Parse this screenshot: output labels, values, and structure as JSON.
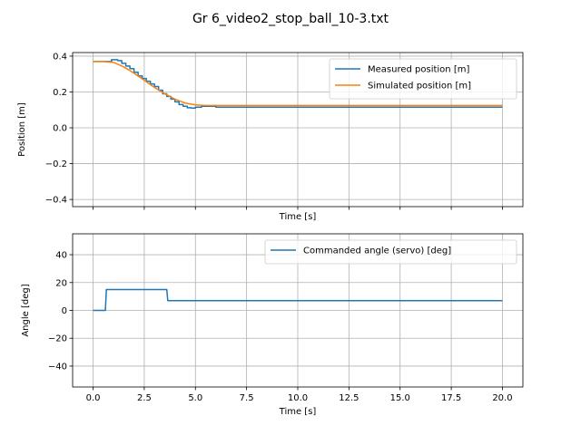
{
  "figure": {
    "title": "Gr 6_video2_stop_ball_10-3.txt"
  },
  "chart_data": [
    {
      "type": "line",
      "xlabel": "Time [s]",
      "ylabel": "Position [m]",
      "xlim": [
        -1.0,
        21.0
      ],
      "ylim": [
        -0.44,
        0.42
      ],
      "x_ticks": [
        0.0,
        2.5,
        5.0,
        7.5,
        10.0,
        12.5,
        15.0,
        17.5,
        20.0
      ],
      "x_tick_labels": [],
      "y_ticks": [
        -0.4,
        -0.2,
        0.0,
        0.2,
        0.4
      ],
      "y_tick_labels": [
        "−0.4",
        "−0.2",
        "0.0",
        "0.2",
        "0.4"
      ],
      "grid": true,
      "legend_placement": "upper right",
      "series": [
        {
          "name": "Measured position [m]",
          "color": "#1f77b4",
          "step": true,
          "x": [
            0,
            0.3,
            0.6,
            0.9,
            1.2,
            1.4,
            1.6,
            1.8,
            2.0,
            2.2,
            2.4,
            2.6,
            2.8,
            3.0,
            3.2,
            3.4,
            3.6,
            3.8,
            4.0,
            4.2,
            4.4,
            4.6,
            4.8,
            5.0,
            5.3,
            5.6,
            6.0,
            7.0,
            10.0,
            15.0,
            20.0
          ],
          "y": [
            0.37,
            0.37,
            0.37,
            0.38,
            0.375,
            0.36,
            0.345,
            0.33,
            0.31,
            0.29,
            0.275,
            0.26,
            0.245,
            0.23,
            0.21,
            0.19,
            0.175,
            0.16,
            0.145,
            0.13,
            0.12,
            0.112,
            0.11,
            0.115,
            0.12,
            0.12,
            0.115,
            0.115,
            0.115,
            0.115,
            0.115
          ]
        },
        {
          "name": "Simulated position [m]",
          "color": "#ff7f0e",
          "step": false,
          "x": [
            0,
            0.5,
            1.0,
            1.5,
            2.0,
            2.5,
            3.0,
            3.5,
            4.0,
            4.5,
            5.0,
            5.5,
            6.0,
            7.0,
            10.0,
            15.0,
            20.0
          ],
          "y": [
            0.37,
            0.37,
            0.365,
            0.34,
            0.305,
            0.265,
            0.225,
            0.19,
            0.16,
            0.138,
            0.128,
            0.125,
            0.125,
            0.125,
            0.125,
            0.125,
            0.125
          ]
        }
      ]
    },
    {
      "type": "line",
      "xlabel": "Time [s]",
      "ylabel": "Angle [deg]",
      "xlim": [
        -1.0,
        21.0
      ],
      "ylim": [
        -55,
        55
      ],
      "x_ticks": [
        0.0,
        2.5,
        5.0,
        7.5,
        10.0,
        12.5,
        15.0,
        17.5,
        20.0
      ],
      "x_tick_labels": [
        "0.0",
        "2.5",
        "5.0",
        "7.5",
        "10.0",
        "12.5",
        "15.0",
        "17.5",
        "20.0"
      ],
      "y_ticks": [
        -40,
        -20,
        0,
        20,
        40
      ],
      "y_tick_labels": [
        "−40",
        "−20",
        "0",
        "20",
        "40"
      ],
      "grid": true,
      "legend_placement": "upper right",
      "series": [
        {
          "name": "Commanded angle (servo) [deg]",
          "color": "#1f77b4",
          "step": false,
          "x": [
            0,
            0.6,
            0.65,
            3.6,
            3.65,
            20.0
          ],
          "y": [
            0,
            0,
            15,
            15,
            7,
            7
          ]
        }
      ]
    }
  ]
}
